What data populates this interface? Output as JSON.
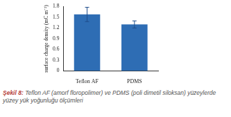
{
  "chart_data": {
    "type": "bar",
    "y_label": "surface charge density (mC m⁻²)",
    "categories": [
      "Teflon AF",
      "PDMS"
    ],
    "values": [
      1.58,
      1.3
    ],
    "errors": [
      0.2,
      0.1
    ],
    "color": "#2e6db4",
    "ylim": [
      0,
      1.8
    ],
    "yticks": [
      0,
      0.3,
      0.6,
      0.9,
      1.2,
      1.5,
      1.8
    ],
    "grid": false,
    "caption_label": "Şekil 8:",
    "caption": "Teflon AF (amorf floropolimer) ve PDMS (poli dimetil siloksan) yüzeylerde yüzey yük yoğunluğu ölçümleri"
  }
}
